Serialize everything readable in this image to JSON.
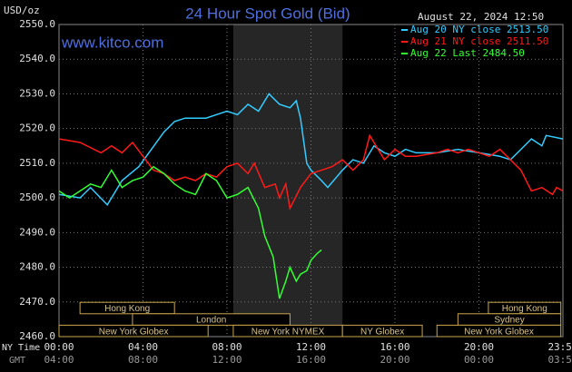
{
  "chart_data": {
    "type": "line",
    "title": "24 Hour Spot Gold (Bid)",
    "y_label": "USD/oz",
    "timestamp": "August 22, 2024 12:50",
    "watermark": "www.kitco.com",
    "x_label": "NY Time",
    "x2_label": "GMT",
    "xlim": [
      0,
      24
    ],
    "xticks": [
      {
        "value": 0,
        "label": "00:00"
      },
      {
        "value": 4,
        "label": "04:00"
      },
      {
        "value": 8,
        "label": "08:00"
      },
      {
        "value": 12,
        "label": "12:00"
      },
      {
        "value": 16,
        "label": "16:00"
      },
      {
        "value": 20,
        "label": "20:00"
      },
      {
        "value": 24,
        "label": "23:59"
      }
    ],
    "x2ticks": [
      "04:00",
      "08:00",
      "12:00",
      "16:00",
      "20:00",
      "00:00",
      "03:59"
    ],
    "ylim": [
      2460,
      2550
    ],
    "yticks": [
      {
        "value": 2460,
        "label": "2460.0"
      },
      {
        "value": 2470,
        "label": "2470.0"
      },
      {
        "value": 2480,
        "label": "2480.0"
      },
      {
        "value": 2490,
        "label": "2490.0"
      },
      {
        "value": 2500,
        "label": "2500.0"
      },
      {
        "value": 2510,
        "label": "2510.0"
      },
      {
        "value": 2520,
        "label": "2520.0"
      },
      {
        "value": 2530,
        "label": "2530.0"
      },
      {
        "value": 2540,
        "label": "2540.0"
      },
      {
        "value": 2550,
        "label": "2550.0"
      }
    ],
    "grid": true,
    "highlight": [
      8.3,
      13.5
    ],
    "sessions": [
      {
        "name": "Hong Kong",
        "row": 0,
        "start": 1,
        "end": 5.5
      },
      {
        "name": "Hong Kong",
        "row": 0,
        "start": 20.45,
        "end": 23.9
      },
      {
        "name": "London",
        "row": 1,
        "start": 3.5,
        "end": 11
      },
      {
        "name": "Sydney",
        "row": 1,
        "start": 19,
        "end": 23.9
      },
      {
        "name": "New York Globex",
        "row": 2,
        "start": 0,
        "end": 7.1
      },
      {
        "name": "New York NYMEX",
        "row": 2,
        "start": 8.3,
        "end": 13.5
      },
      {
        "name": "NY Globex",
        "row": 2,
        "start": 13.5,
        "end": 17.3
      },
      {
        "name": "New York Globex",
        "row": 2,
        "start": 18,
        "end": 23.9
      }
    ],
    "series": [
      {
        "name": "Aug 20 NY close 2513.50",
        "color": "#33ccff",
        "x": [
          0,
          1,
          1.5,
          2.3,
          3,
          3.8,
          5,
          5.5,
          6,
          7,
          8,
          8.5,
          9,
          9.5,
          10,
          10.5,
          11,
          11.3,
          11.5,
          11.8,
          12,
          12.5,
          12.8,
          13.5,
          14,
          14.5,
          15,
          15.5,
          16,
          16.5,
          17,
          18,
          19,
          20,
          21,
          21.5,
          22,
          22.5,
          23,
          23.2,
          24
        ],
        "values": [
          2501,
          2500,
          2503,
          2498,
          2505,
          2509,
          2519,
          2522,
          2523,
          2523,
          2525,
          2524,
          2527,
          2525,
          2530,
          2527,
          2526,
          2528,
          2523,
          2510,
          2508,
          2505,
          2503,
          2508,
          2511,
          2510,
          2515,
          2513,
          2512,
          2514,
          2513,
          2513,
          2514,
          2513,
          2512,
          2511,
          2514,
          2517,
          2515,
          2518,
          2517
        ]
      },
      {
        "name": "Aug 21 NY close 2511.50",
        "color": "#ff1a1a",
        "x": [
          0,
          1,
          2,
          2.5,
          3,
          3.5,
          4,
          4.5,
          5,
          5.5,
          6,
          6.5,
          7,
          7.5,
          8,
          8.5,
          9,
          9.3,
          9.8,
          10.3,
          10.5,
          10.8,
          11,
          11.5,
          12,
          12.5,
          13,
          13.5,
          14,
          14.5,
          14.8,
          15,
          15.5,
          16,
          16.5,
          17,
          18,
          18.5,
          19,
          19.5,
          20,
          20.5,
          21,
          21.5,
          22,
          22.5,
          23,
          23.5,
          23.7,
          24
        ],
        "values": [
          2517,
          2516,
          2513,
          2515,
          2513,
          2516,
          2512,
          2508,
          2507,
          2505,
          2506,
          2505,
          2507,
          2506,
          2509,
          2510,
          2507,
          2510,
          2503,
          2504,
          2500,
          2504,
          2497,
          2503,
          2507,
          2508,
          2509,
          2511,
          2508,
          2511,
          2518,
          2516,
          2511,
          2514,
          2512,
          2512,
          2513,
          2514,
          2513,
          2514,
          2513,
          2512,
          2514,
          2511,
          2508,
          2502,
          2503,
          2501,
          2503,
          2502
        ]
      },
      {
        "name": "Aug 22 Last 2484.50",
        "color": "#33ff33",
        "x": [
          0,
          0.5,
          1,
          1.5,
          2,
          2.5,
          3,
          3.5,
          4,
          4.5,
          5,
          5.5,
          6,
          6.5,
          7,
          7.5,
          8,
          8.5,
          9,
          9.5,
          9.8,
          10.2,
          10.5,
          10.8,
          11,
          11.3,
          11.5,
          11.8,
          12,
          12.3,
          12.5
        ],
        "values": [
          2502,
          2500,
          2502,
          2504,
          2503,
          2508,
          2503,
          2505,
          2506,
          2509,
          2507,
          2504,
          2502,
          2501,
          2507,
          2505,
          2500,
          2501,
          2503,
          2497,
          2489,
          2483,
          2471,
          2476,
          2480,
          2476,
          2478,
          2479,
          2482,
          2484,
          2485
        ]
      }
    ]
  }
}
